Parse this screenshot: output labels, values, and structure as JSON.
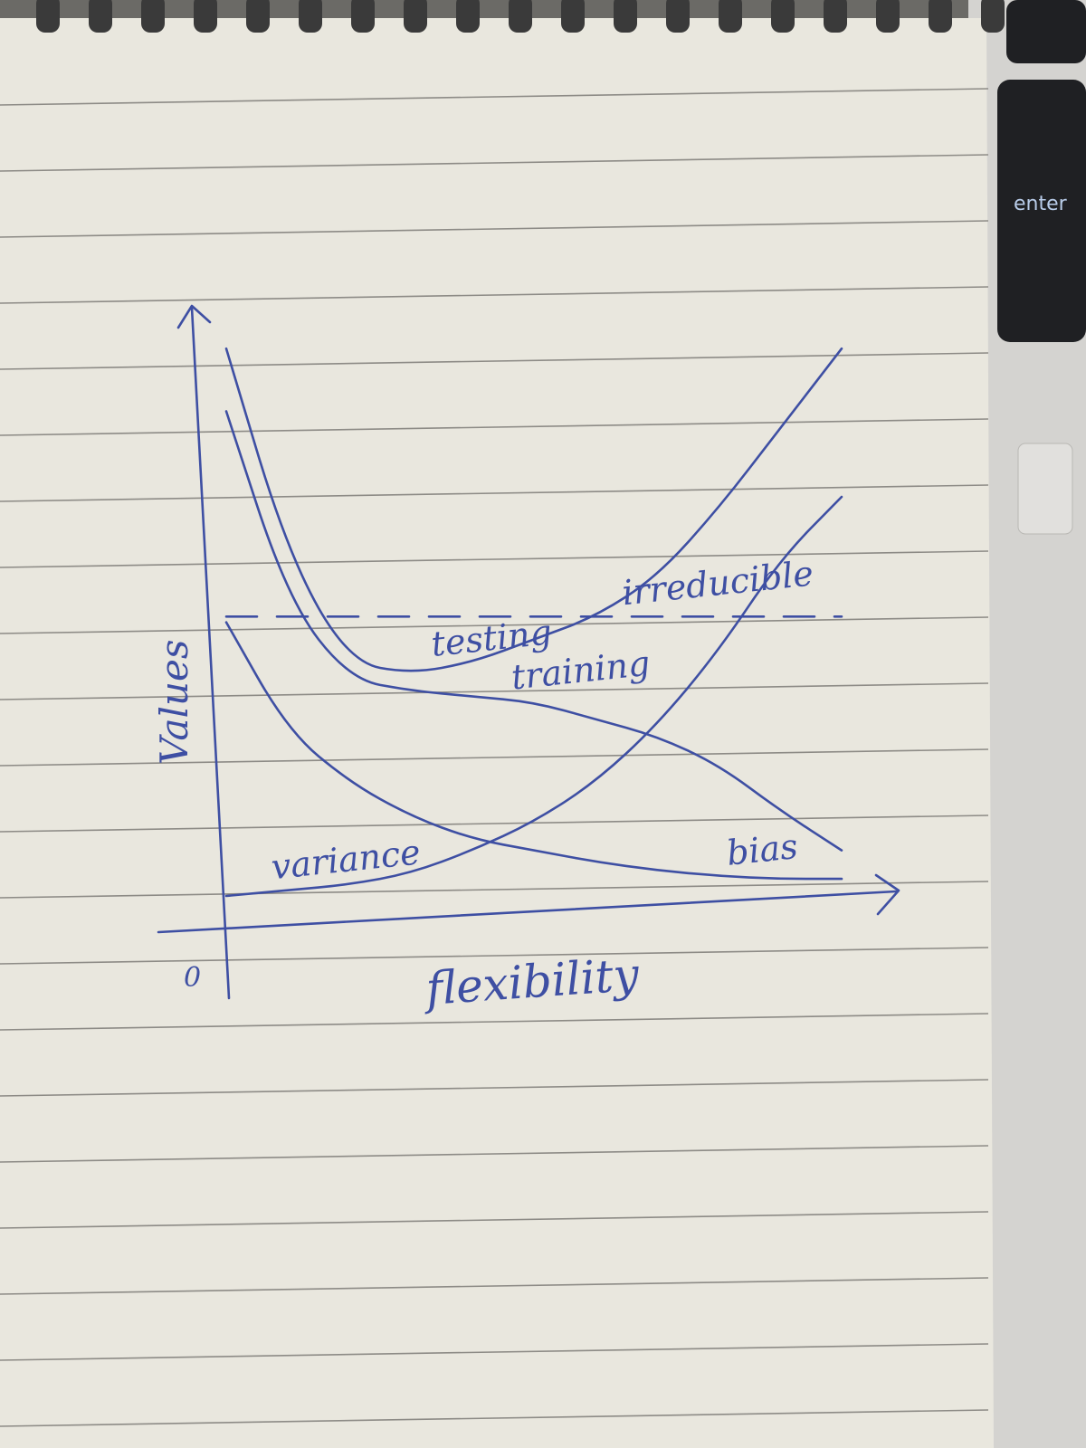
{
  "keyboard": {
    "key_label": "enter"
  },
  "colors": {
    "ink": "#3e4fa3",
    "paper": "#e9e7de",
    "rule": "#8d8b86",
    "keyboard": "#1f2023"
  },
  "chart_data": {
    "type": "line",
    "xlabel": "flexibility",
    "ylabel": "Values",
    "origin_label": "0",
    "hand_drawn": true,
    "x": [
      0,
      1,
      2,
      3,
      4,
      5,
      6,
      7,
      8,
      9,
      10
    ],
    "xlim": [
      0,
      10
    ],
    "ylim": [
      0,
      10
    ],
    "grid": false,
    "legend": "none",
    "series": [
      {
        "name": "testing",
        "style": "solid",
        "values": [
          9.6,
          6.0,
          4.1,
          3.9,
          4.1,
          4.5,
          4.9,
          5.6,
          6.8,
          8.2,
          9.6
        ],
        "label_at": 3.5
      },
      {
        "name": "training",
        "style": "solid",
        "values": [
          8.5,
          5.2,
          3.8,
          3.6,
          3.5,
          3.4,
          3.1,
          2.8,
          2.3,
          1.5,
          0.8
        ],
        "label_at": 4.8
      },
      {
        "name": "irreducible",
        "style": "dashed",
        "values": [
          4.9,
          4.9,
          4.9,
          4.9,
          4.9,
          4.9,
          4.9,
          4.9,
          4.9,
          4.9,
          4.9
        ],
        "label_at": 6.6
      },
      {
        "name": "bias",
        "style": "solid",
        "values": [
          4.8,
          2.9,
          2.0,
          1.4,
          1.0,
          0.8,
          0.6,
          0.45,
          0.35,
          0.3,
          0.3
        ],
        "label_at": 8.3
      },
      {
        "name": "variance",
        "style": "solid",
        "values": [
          0.0,
          0.1,
          0.2,
          0.4,
          0.8,
          1.3,
          2.0,
          3.0,
          4.3,
          5.9,
          7.0
        ],
        "label_at": 0.9
      }
    ]
  }
}
